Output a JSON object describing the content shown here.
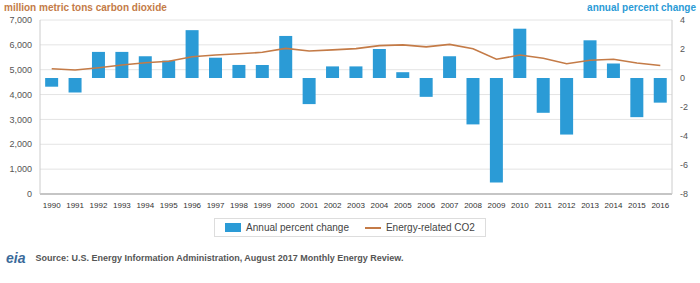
{
  "chart_data": {
    "type": "bar",
    "ylabel": "million metric tons carbon dioxide",
    "y2label": "annual percent change",
    "categories": [
      "1990",
      "1991",
      "1992",
      "1993",
      "1994",
      "1995",
      "1996",
      "1997",
      "1998",
      "1999",
      "2000",
      "2001",
      "2002",
      "2003",
      "2004",
      "2005",
      "2006",
      "2007",
      "2008",
      "2009",
      "2010",
      "2011",
      "2012",
      "2013",
      "2014",
      "2015",
      "2016"
    ],
    "series": [
      {
        "name": "Annual percent change",
        "type": "bar",
        "axis": "y2",
        "color": "#2b9bd6",
        "values": [
          -0.6,
          -1.0,
          1.8,
          1.8,
          1.5,
          1.2,
          3.3,
          1.4,
          0.9,
          0.9,
          2.9,
          -1.8,
          0.8,
          0.8,
          2.0,
          0.4,
          -1.3,
          1.5,
          -3.2,
          -7.2,
          3.4,
          -2.4,
          -3.9,
          2.6,
          1.0,
          -2.7,
          -1.7
        ]
      },
      {
        "name": "Energy-related CO2",
        "type": "line",
        "color": "#c47b47",
        "values": [
          5040,
          4990,
          5080,
          5190,
          5280,
          5340,
          5520,
          5590,
          5640,
          5700,
          5860,
          5750,
          5800,
          5850,
          5970,
          6000,
          5920,
          6020,
          5840,
          5420,
          5590,
          5460,
          5240,
          5380,
          5420,
          5270,
          5170
        ]
      }
    ],
    "ylim": [
      0,
      7000
    ],
    "yticks": [
      0,
      {
        "value": 1000,
        "label": "1,000"
      },
      {
        "value": 2000,
        "label": "2,000"
      },
      {
        "value": 3000,
        "label": "3,000"
      },
      {
        "value": 4000,
        "label": "4,000"
      },
      {
        "value": 5000,
        "label": "5,000"
      },
      {
        "value": 6000,
        "label": "6,000"
      },
      {
        "value": 7000,
        "label": "7,000"
      }
    ],
    "y2lim": [
      -8,
      4
    ],
    "y2ticks": [
      -8,
      -6,
      -4,
      -2,
      0,
      2,
      4
    ],
    "grid": true,
    "legend": "bottom",
    "annotations": [
      "eia",
      "Source: U.S. Energy Information Administration, August 2017 Monthly Energy Review."
    ]
  }
}
